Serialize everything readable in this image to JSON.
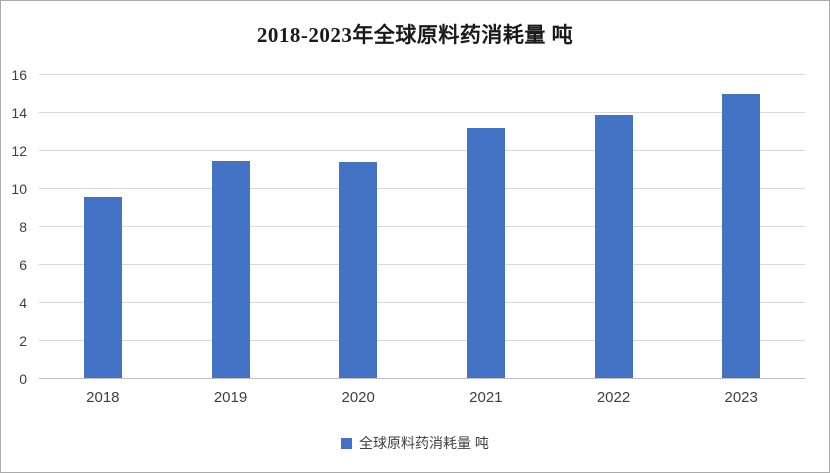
{
  "chart_data": {
    "type": "bar",
    "title": "2018-2023年全球原料药消耗量 吨",
    "categories": [
      "2018",
      "2019",
      "2020",
      "2021",
      "2022",
      "2023"
    ],
    "values": [
      9.6,
      11.5,
      11.4,
      13.2,
      13.9,
      15.0
    ],
    "xlabel": "",
    "ylabel": "",
    "ylim": [
      0,
      16
    ],
    "ytick_step": 2,
    "ytick_labels": [
      "0",
      "2",
      "4",
      "6",
      "8",
      "10",
      "12",
      "14",
      "16"
    ],
    "grid": true,
    "bar_color": "#4472C4",
    "gridline_color": "#d9d9d9",
    "legend": {
      "label": "全球原料药消耗量 吨",
      "position": "bottom"
    }
  }
}
